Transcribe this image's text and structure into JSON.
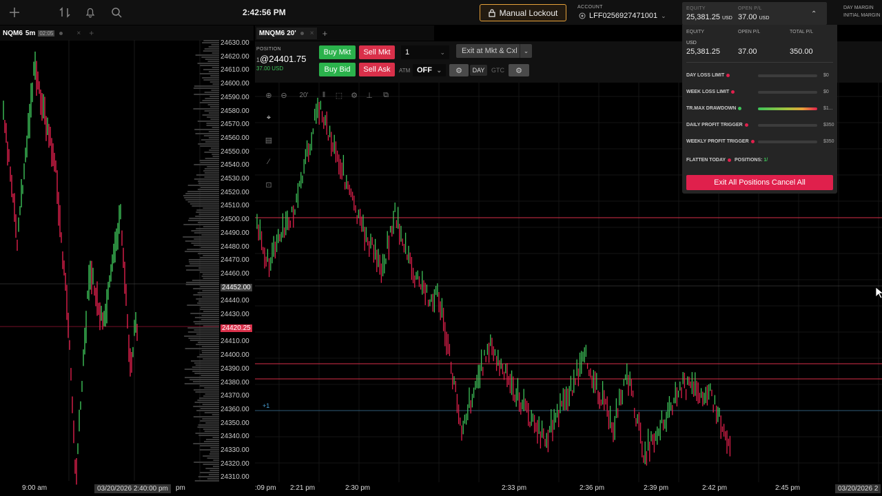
{
  "topbar": {
    "clock": "2:42:56 PM",
    "lockout_label": "Manual Lockout",
    "account_caption": "ACCOUNT",
    "account_id": "LFF0256927471001",
    "equity_caption": "EQUITY",
    "equity_value": "25,381.25",
    "equity_unit": "USD",
    "openpl_caption": "OPEN P/L",
    "openpl_value": "37.00",
    "openpl_unit": "USD",
    "day_margin": "DAY MARGIN",
    "initial_margin": "INITIAL MARGIN"
  },
  "left_chart": {
    "symbol": "NQM6",
    "interval": "5m",
    "countdown": "02:05",
    "price_labels": [
      "24630.00",
      "24620.00",
      "24610.00",
      "24600.00",
      "24590.00",
      "24580.00",
      "24570.00",
      "24560.00",
      "24550.00",
      "24540.00",
      "24530.00",
      "24520.00",
      "24510.00",
      "24500.00",
      "24490.00",
      "24480.00",
      "24470.00",
      "24460.00",
      "24452.00",
      "24440.00",
      "24430.00",
      "24420.25",
      "24410.00",
      "24400.00",
      "24390.00",
      "24380.00",
      "24370.00",
      "24360.00",
      "24350.00",
      "24340.00",
      "24330.00",
      "24320.00",
      "24310.00"
    ],
    "time_labels": [
      "9:00 am",
      "03/20/2026 2:40:00 pm",
      "pm"
    ]
  },
  "right_chart": {
    "symbol": "MNQM6",
    "interval": "20'",
    "time_labels": [
      ":09 pm",
      "2:21 pm",
      "2:30 pm",
      "2:33 pm",
      "2:36 pm",
      "2:39 pm",
      "2:42 pm",
      "2:45 pm",
      "03/20/2026 2"
    ],
    "position_marker": "+1",
    "toolbar_zoom_label": "20'"
  },
  "order": {
    "position_caption": "POSITION",
    "position_qty": "1",
    "position_price": "@24401.75",
    "position_pl": "37.00 USD",
    "buy_mkt": "Buy Mkt",
    "sell_mkt": "Sell Mkt",
    "buy_bid": "Buy Bid",
    "sell_ask": "Sell Ask",
    "qty": "1",
    "exit_label": "Exit at Mkt & Cxl",
    "atm_caption": "ATM",
    "atm_value": "OFF",
    "day": "DAY",
    "gtc": "GTC"
  },
  "dropdown": {
    "equity_h": "EQUITY",
    "openpl_h": "OPEN P/L",
    "totalpl_h": "TOTAL P/L",
    "currency": "USD",
    "equity": "25,381.25",
    "openpl": "37.00",
    "totalpl": "350.00",
    "rows": [
      {
        "label": "DAY LOSS LIMIT",
        "dot": "#e0204c",
        "value": "$0",
        "fill": 0
      },
      {
        "label": "WEEK LOSS LIMIT",
        "dot": "#e0204c",
        "value": "$0",
        "fill": 0
      },
      {
        "label": "TR.MAX DRAWDOWN",
        "dot": "#3ec45a",
        "value": "$1...",
        "fill": 1
      },
      {
        "label": "DAILY PROFIT TRIGGER",
        "dot": "#e0204c",
        "value": "$350",
        "fill": 0
      },
      {
        "label": "WEEKLY PROFIT TRIGGER",
        "dot": "#e0204c",
        "value": "$350",
        "fill": 0
      }
    ],
    "flatten_label": "FLATTEN TODAY",
    "positions_label": "POSITIONS:",
    "positions_value": "1/",
    "exit_all": "Exit All Positions Cancel All"
  },
  "colors": {
    "buy": "#2bb24c",
    "sell": "#d9304a",
    "accent": "#e8a23a",
    "exit": "#e0204c"
  }
}
